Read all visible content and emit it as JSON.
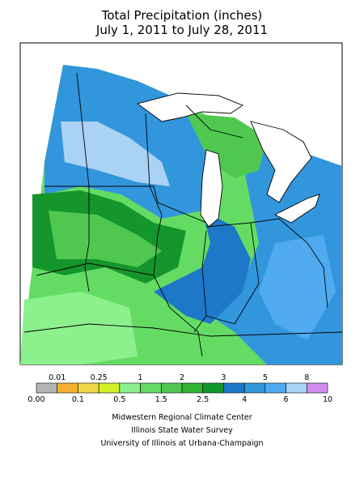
{
  "header": {
    "title": "Total Precipitation (inches)",
    "subtitle": "July 1, 2011 to July 28, 2011"
  },
  "legend": {
    "bins": [
      {
        "value": 0,
        "label": "0.00"
      },
      0.01,
      0.1,
      0.25,
      0.5,
      1,
      1.5,
      2,
      2.5,
      3,
      4,
      5,
      6,
      8,
      10
    ],
    "colors": [
      "#b4b4b4",
      "#f5b030",
      "#f0d846",
      "#d2f028",
      "#8cf08c",
      "#64dc64",
      "#50c850",
      "#32b432",
      "#14962d",
      "#1e78c8",
      "#3296dc",
      "#50aaf0",
      "#aad2f5",
      "#d28cf0"
    ]
  },
  "credits": [
    "Midwestern Regional Climate Center",
    "Illinois State Water Survey",
    "University of Illinois at Urbana-Champaign"
  ]
}
